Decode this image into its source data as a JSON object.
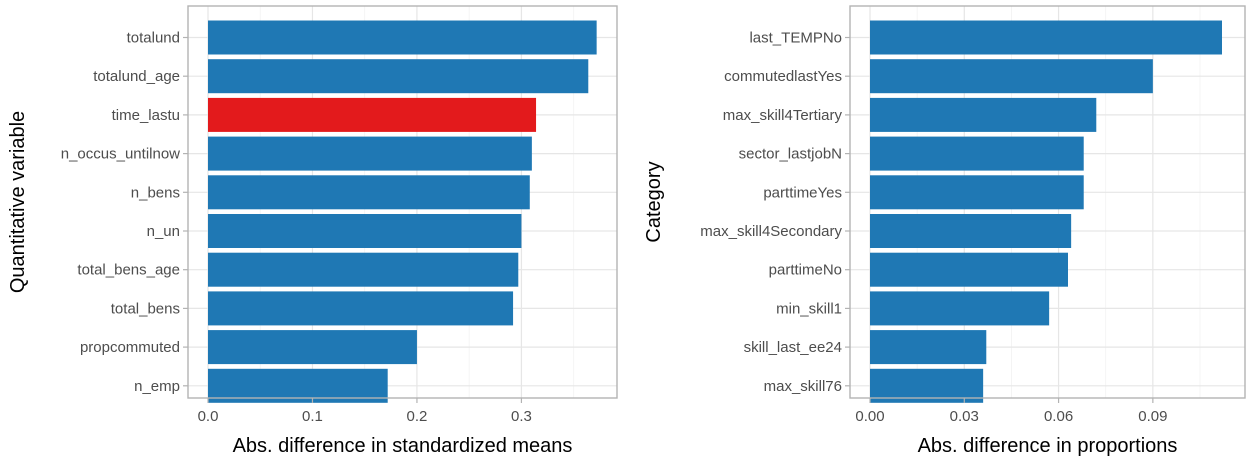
{
  "colors": {
    "bar": "#1f78b4",
    "highlight": "#e31a1c"
  },
  "chart_data": [
    {
      "type": "bar",
      "orientation": "horizontal",
      "xlabel": "Abs. difference in standardized means",
      "ylabel": "Quantitative variable",
      "xlim": [
        0,
        0.38
      ],
      "xticks": [
        0.0,
        0.1,
        0.2,
        0.3
      ],
      "xtick_labels": [
        "0.0",
        "0.1",
        "0.2",
        "0.3"
      ],
      "grid": true,
      "categories": [
        "totalund",
        "totalund_age",
        "time_lastu",
        "n_occus_untilnow",
        "n_bens",
        "n_un",
        "total_bens_age",
        "total_bens",
        "propcommuted",
        "n_emp"
      ],
      "values": [
        0.372,
        0.364,
        0.314,
        0.31,
        0.308,
        0.3,
        0.297,
        0.292,
        0.2,
        0.172
      ],
      "highlighted": [
        "time_lastu"
      ]
    },
    {
      "type": "bar",
      "orientation": "horizontal",
      "xlabel": "Abs. difference in proportions",
      "ylabel": "Category",
      "xlim": [
        0,
        0.1155
      ],
      "xticks": [
        0.0,
        0.03,
        0.06,
        0.09
      ],
      "xtick_labels": [
        "0.00",
        "0.03",
        "0.06",
        "0.09"
      ],
      "grid": true,
      "categories": [
        "last_TEMPNo",
        "commutedlastYes",
        "max_skill4Tertiary",
        "sector_lastjobN",
        "parttimeYes",
        "max_skill4Secondary",
        "parttimeNo",
        "min_skill1",
        "skill_last_ee24",
        "max_skill76"
      ],
      "values": [
        0.112,
        0.09,
        0.072,
        0.068,
        0.068,
        0.064,
        0.063,
        0.057,
        0.037,
        0.036
      ],
      "highlighted": []
    }
  ]
}
